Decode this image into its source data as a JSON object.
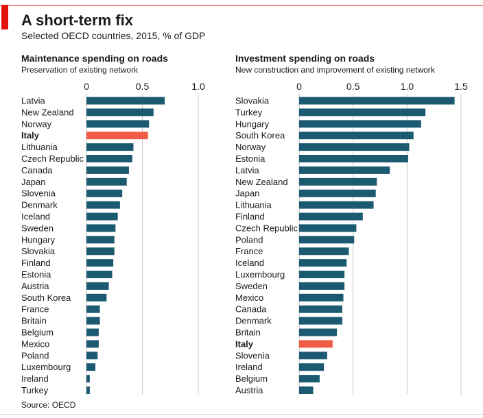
{
  "header": {
    "title": "A short-term fix",
    "subtitle": "Selected OECD countries, 2015, % of GDP",
    "source": "Source: OECD"
  },
  "colors": {
    "bar": "#1c5a72",
    "highlight": "#ef5b44",
    "grid": "#c8c8c8",
    "accent": "#e3120b"
  },
  "chart_data": [
    {
      "type": "bar",
      "orientation": "horizontal",
      "title": "Maintenance spending on roads",
      "subtitle": "Preservation of existing network",
      "xlim": [
        0,
        1.0
      ],
      "ticks": [
        "0",
        "0.5",
        "1.0"
      ],
      "tick_values": [
        0,
        0.5,
        1.0
      ],
      "highlight": "Italy",
      "categories": [
        "Latvia",
        "New Zealand",
        "Norway",
        "Italy",
        "Lithuania",
        "Czech Republic",
        "Canada",
        "Japan",
        "Slovenia",
        "Denmark",
        "Iceland",
        "Sweden",
        "Hungary",
        "Slovakia",
        "Finland",
        "Estonia",
        "Austria",
        "South Korea",
        "France",
        "Britain",
        "Belgium",
        "Mexico",
        "Poland",
        "Luxembourg",
        "Ireland",
        "Turkey"
      ],
      "values": [
        0.7,
        0.6,
        0.56,
        0.55,
        0.42,
        0.41,
        0.38,
        0.36,
        0.32,
        0.3,
        0.28,
        0.26,
        0.25,
        0.25,
        0.24,
        0.23,
        0.2,
        0.18,
        0.12,
        0.12,
        0.11,
        0.11,
        0.1,
        0.08,
        0.03,
        0.03
      ]
    },
    {
      "type": "bar",
      "orientation": "horizontal",
      "title": "Investment spending on roads",
      "subtitle": "New construction and improvement of existing network",
      "xlim": [
        0,
        1.5
      ],
      "ticks": [
        "0",
        "0.5",
        "1.0",
        "1.5"
      ],
      "tick_values": [
        0,
        0.5,
        1.0,
        1.5
      ],
      "highlight": "Italy",
      "categories": [
        "Slovakia",
        "Turkey",
        "Hungary",
        "South Korea",
        "Norway",
        "Estonia",
        "Latvia",
        "New Zealand",
        "Japan",
        "Lithuania",
        "Finland",
        "Czech Republic",
        "Poland",
        "France",
        "Iceland",
        "Luxembourg",
        "Sweden",
        "Mexico",
        "Canada",
        "Denmark",
        "Britain",
        "Italy",
        "Slovenia",
        "Ireland",
        "Belgium",
        "Austria"
      ],
      "values": [
        1.44,
        1.17,
        1.13,
        1.06,
        1.02,
        1.01,
        0.84,
        0.72,
        0.71,
        0.69,
        0.59,
        0.53,
        0.51,
        0.46,
        0.44,
        0.42,
        0.42,
        0.41,
        0.4,
        0.4,
        0.35,
        0.31,
        0.26,
        0.23,
        0.19,
        0.13
      ]
    }
  ]
}
